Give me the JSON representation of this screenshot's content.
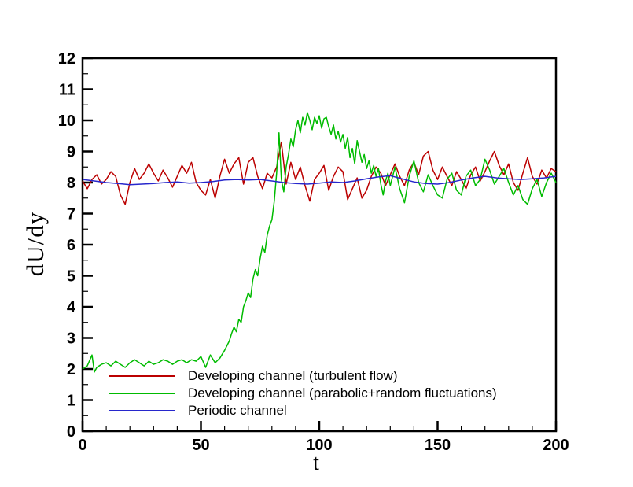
{
  "chart_data": {
    "type": "line",
    "title": "",
    "xlabel": "t",
    "ylabel": "dU/dy",
    "xlim": [
      0,
      200
    ],
    "ylim": [
      0,
      12
    ],
    "x_major_step": 50,
    "x_minor_step": 10,
    "y_major_step": 1,
    "y_minor_step": 0.5,
    "grid": "off",
    "ticks": "inward",
    "axis_color": "#000000",
    "background_color": "#ffffff",
    "legend_position": "inside-bottom-left",
    "x_tick_labels": [
      "0",
      "50",
      "100",
      "150",
      "200"
    ],
    "y_tick_labels": [
      "0",
      "1",
      "2",
      "3",
      "4",
      "5",
      "6",
      "7",
      "8",
      "9",
      "10",
      "11",
      "12"
    ],
    "series": [
      {
        "name": "Developing channel (turbulent flow)",
        "color": "#bb0000",
        "points": [
          [
            0,
            8.05
          ],
          [
            2,
            7.8
          ],
          [
            4,
            8.1
          ],
          [
            6,
            8.25
          ],
          [
            8,
            7.95
          ],
          [
            10,
            8.1
          ],
          [
            12,
            8.35
          ],
          [
            14,
            8.2
          ],
          [
            16,
            7.6
          ],
          [
            18,
            7.3
          ],
          [
            20,
            8.0
          ],
          [
            22,
            8.45
          ],
          [
            24,
            8.1
          ],
          [
            26,
            8.3
          ],
          [
            28,
            8.6
          ],
          [
            30,
            8.3
          ],
          [
            32,
            8.05
          ],
          [
            34,
            8.4
          ],
          [
            36,
            8.15
          ],
          [
            38,
            7.85
          ],
          [
            40,
            8.2
          ],
          [
            42,
            8.55
          ],
          [
            44,
            8.3
          ],
          [
            46,
            8.65
          ],
          [
            48,
            8.0
          ],
          [
            50,
            7.75
          ],
          [
            52,
            7.6
          ],
          [
            54,
            8.1
          ],
          [
            56,
            7.5
          ],
          [
            58,
            8.2
          ],
          [
            60,
            8.75
          ],
          [
            62,
            8.3
          ],
          [
            64,
            8.6
          ],
          [
            66,
            8.8
          ],
          [
            68,
            7.95
          ],
          [
            70,
            8.65
          ],
          [
            72,
            8.8
          ],
          [
            74,
            8.2
          ],
          [
            76,
            7.8
          ],
          [
            78,
            8.3
          ],
          [
            80,
            8.15
          ],
          [
            82,
            8.5
          ],
          [
            84,
            9.3
          ],
          [
            86,
            7.95
          ],
          [
            88,
            8.65
          ],
          [
            90,
            8.1
          ],
          [
            92,
            8.5
          ],
          [
            94,
            7.9
          ],
          [
            96,
            7.4
          ],
          [
            98,
            8.1
          ],
          [
            100,
            8.3
          ],
          [
            102,
            8.55
          ],
          [
            104,
            7.75
          ],
          [
            106,
            8.2
          ],
          [
            108,
            8.5
          ],
          [
            110,
            8.35
          ],
          [
            112,
            7.45
          ],
          [
            114,
            7.8
          ],
          [
            116,
            8.15
          ],
          [
            118,
            7.5
          ],
          [
            120,
            7.75
          ],
          [
            122,
            8.2
          ],
          [
            124,
            8.5
          ],
          [
            126,
            8.3
          ],
          [
            128,
            7.9
          ],
          [
            130,
            8.25
          ],
          [
            132,
            8.6
          ],
          [
            134,
            8.2
          ],
          [
            136,
            7.9
          ],
          [
            138,
            8.4
          ],
          [
            140,
            8.65
          ],
          [
            142,
            8.25
          ],
          [
            144,
            8.85
          ],
          [
            146,
            9.0
          ],
          [
            148,
            8.4
          ],
          [
            150,
            8.1
          ],
          [
            152,
            8.5
          ],
          [
            154,
            8.2
          ],
          [
            156,
            7.9
          ],
          [
            158,
            8.35
          ],
          [
            160,
            8.1
          ],
          [
            162,
            7.8
          ],
          [
            164,
            8.25
          ],
          [
            166,
            8.5
          ],
          [
            168,
            8.05
          ],
          [
            170,
            8.35
          ],
          [
            172,
            8.7
          ],
          [
            174,
            9.0
          ],
          [
            176,
            8.55
          ],
          [
            178,
            8.25
          ],
          [
            180,
            8.6
          ],
          [
            182,
            8.0
          ],
          [
            184,
            7.75
          ],
          [
            186,
            8.3
          ],
          [
            188,
            8.8
          ],
          [
            190,
            8.2
          ],
          [
            192,
            7.95
          ],
          [
            194,
            8.4
          ],
          [
            196,
            8.15
          ],
          [
            198,
            8.45
          ],
          [
            200,
            8.35
          ]
        ]
      },
      {
        "name": "Developing channel (parabolic+random fluctuations)",
        "color": "#00bb00",
        "points": [
          [
            0,
            2.0
          ],
          [
            2,
            2.1
          ],
          [
            4,
            2.45
          ],
          [
            5,
            1.9
          ],
          [
            6,
            2.05
          ],
          [
            8,
            2.15
          ],
          [
            10,
            2.2
          ],
          [
            12,
            2.1
          ],
          [
            14,
            2.25
          ],
          [
            16,
            2.15
          ],
          [
            18,
            2.05
          ],
          [
            20,
            2.2
          ],
          [
            22,
            2.3
          ],
          [
            24,
            2.2
          ],
          [
            26,
            2.1
          ],
          [
            28,
            2.25
          ],
          [
            30,
            2.15
          ],
          [
            32,
            2.2
          ],
          [
            34,
            2.3
          ],
          [
            36,
            2.25
          ],
          [
            38,
            2.15
          ],
          [
            40,
            2.25
          ],
          [
            42,
            2.3
          ],
          [
            44,
            2.2
          ],
          [
            46,
            2.3
          ],
          [
            48,
            2.25
          ],
          [
            50,
            2.4
          ],
          [
            52,
            2.05
          ],
          [
            54,
            2.45
          ],
          [
            56,
            2.2
          ],
          [
            58,
            2.35
          ],
          [
            60,
            2.6
          ],
          [
            61,
            2.75
          ],
          [
            62,
            2.9
          ],
          [
            63,
            3.15
          ],
          [
            64,
            3.35
          ],
          [
            65,
            3.2
          ],
          [
            66,
            3.6
          ],
          [
            67,
            3.5
          ],
          [
            68,
            4.0
          ],
          [
            69,
            4.2
          ],
          [
            70,
            4.45
          ],
          [
            71,
            4.3
          ],
          [
            72,
            4.9
          ],
          [
            73,
            5.2
          ],
          [
            74,
            5.0
          ],
          [
            75,
            5.55
          ],
          [
            76,
            5.95
          ],
          [
            77,
            5.75
          ],
          [
            78,
            6.3
          ],
          [
            79,
            6.6
          ],
          [
            80,
            6.8
          ],
          [
            81,
            7.4
          ],
          [
            82,
            8.3
          ],
          [
            83,
            9.6
          ],
          [
            84,
            8.1
          ],
          [
            85,
            7.7
          ],
          [
            86,
            8.5
          ],
          [
            87,
            8.9
          ],
          [
            88,
            9.4
          ],
          [
            89,
            9.15
          ],
          [
            90,
            9.7
          ],
          [
            91,
            10.0
          ],
          [
            92,
            9.6
          ],
          [
            93,
            10.1
          ],
          [
            94,
            9.85
          ],
          [
            95,
            10.25
          ],
          [
            96,
            10.0
          ],
          [
            97,
            9.7
          ],
          [
            98,
            10.1
          ],
          [
            99,
            9.9
          ],
          [
            100,
            10.15
          ],
          [
            101,
            9.75
          ],
          [
            102,
            10.05
          ],
          [
            103,
            10.1
          ],
          [
            104,
            9.8
          ],
          [
            105,
            9.55
          ],
          [
            106,
            9.85
          ],
          [
            107,
            9.4
          ],
          [
            108,
            9.65
          ],
          [
            109,
            9.3
          ],
          [
            110,
            9.55
          ],
          [
            111,
            9.1
          ],
          [
            112,
            9.45
          ],
          [
            113,
            8.8
          ],
          [
            114,
            9.1
          ],
          [
            115,
            8.6
          ],
          [
            116,
            9.35
          ],
          [
            117,
            9.0
          ],
          [
            118,
            8.65
          ],
          [
            119,
            8.9
          ],
          [
            120,
            8.45
          ],
          [
            121,
            8.7
          ],
          [
            122,
            8.3
          ],
          [
            123,
            8.55
          ],
          [
            124,
            8.2
          ],
          [
            125,
            8.45
          ],
          [
            126,
            7.95
          ],
          [
            127,
            7.6
          ],
          [
            128,
            8.05
          ],
          [
            129,
            8.3
          ],
          [
            130,
            7.9
          ],
          [
            132,
            8.5
          ],
          [
            134,
            7.8
          ],
          [
            136,
            7.35
          ],
          [
            138,
            8.2
          ],
          [
            140,
            8.7
          ],
          [
            142,
            8.0
          ],
          [
            144,
            7.7
          ],
          [
            146,
            8.25
          ],
          [
            148,
            7.9
          ],
          [
            150,
            7.6
          ],
          [
            152,
            7.5
          ],
          [
            154,
            8.1
          ],
          [
            156,
            8.3
          ],
          [
            158,
            7.75
          ],
          [
            160,
            7.6
          ],
          [
            162,
            8.2
          ],
          [
            164,
            8.4
          ],
          [
            166,
            7.9
          ],
          [
            168,
            8.1
          ],
          [
            170,
            8.75
          ],
          [
            172,
            8.4
          ],
          [
            174,
            7.95
          ],
          [
            176,
            8.2
          ],
          [
            178,
            8.45
          ],
          [
            180,
            8.0
          ],
          [
            182,
            7.6
          ],
          [
            184,
            7.9
          ],
          [
            186,
            7.45
          ],
          [
            188,
            7.3
          ],
          [
            190,
            7.8
          ],
          [
            192,
            8.1
          ],
          [
            194,
            7.55
          ],
          [
            196,
            8.0
          ],
          [
            198,
            8.3
          ],
          [
            200,
            8.0
          ]
        ]
      },
      {
        "name": "Periodic channel",
        "color": "#2727cc",
        "points": [
          [
            0,
            8.1
          ],
          [
            5,
            8.05
          ],
          [
            10,
            8.0
          ],
          [
            15,
            7.97
          ],
          [
            20,
            7.93
          ],
          [
            25,
            7.95
          ],
          [
            30,
            7.97
          ],
          [
            35,
            8.0
          ],
          [
            40,
            8.02
          ],
          [
            45,
            7.98
          ],
          [
            50,
            8.0
          ],
          [
            55,
            8.03
          ],
          [
            60,
            8.08
          ],
          [
            65,
            8.1
          ],
          [
            70,
            8.08
          ],
          [
            75,
            8.1
          ],
          [
            80,
            8.05
          ],
          [
            85,
            8.0
          ],
          [
            90,
            7.97
          ],
          [
            95,
            7.95
          ],
          [
            100,
            7.98
          ],
          [
            105,
            8.02
          ],
          [
            110,
            8.0
          ],
          [
            115,
            8.05
          ],
          [
            120,
            8.12
          ],
          [
            125,
            8.18
          ],
          [
            130,
            8.22
          ],
          [
            135,
            8.12
          ],
          [
            140,
            8.02
          ],
          [
            145,
            7.97
          ],
          [
            150,
            7.95
          ],
          [
            155,
            8.0
          ],
          [
            160,
            8.08
          ],
          [
            165,
            8.15
          ],
          [
            170,
            8.2
          ],
          [
            175,
            8.15
          ],
          [
            180,
            8.12
          ],
          [
            185,
            8.1
          ],
          [
            190,
            8.12
          ],
          [
            195,
            8.15
          ],
          [
            200,
            8.2
          ]
        ]
      }
    ]
  }
}
